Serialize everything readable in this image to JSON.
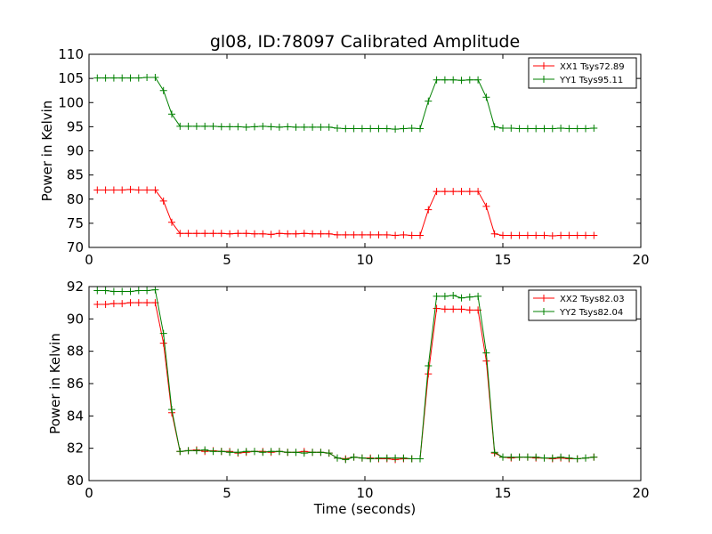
{
  "figure": {
    "title": "gl08, ID:78097 Calibrated Amplitude"
  },
  "colors": {
    "red": "#ff0000",
    "green": "#008000",
    "axes": "#000000",
    "background": "#ffffff"
  },
  "chart_data": [
    {
      "type": "line",
      "title": "gl08, ID:78097 Calibrated Amplitude",
      "xlabel": "",
      "ylabel": "Power in Kelvin",
      "xlim": [
        0,
        20
      ],
      "ylim": [
        70,
        110
      ],
      "xticks": [
        0,
        5,
        10,
        15,
        20
      ],
      "yticks": [
        70,
        75,
        80,
        85,
        90,
        95,
        100,
        105,
        110
      ],
      "grid": false,
      "legend_position": "top-right",
      "marker": "plus",
      "x": [
        0.3,
        0.6,
        0.9,
        1.2,
        1.5,
        1.8,
        2.1,
        2.4,
        2.7,
        3.0,
        3.3,
        3.6,
        3.9,
        4.2,
        4.5,
        4.8,
        5.1,
        5.4,
        5.7,
        6.0,
        6.3,
        6.6,
        6.9,
        7.2,
        7.5,
        7.8,
        8.1,
        8.4,
        8.7,
        9.0,
        9.3,
        9.6,
        9.9,
        10.2,
        10.5,
        10.8,
        11.1,
        11.4,
        11.7,
        12.0,
        12.3,
        12.6,
        12.9,
        13.2,
        13.5,
        13.8,
        14.1,
        14.4,
        14.7,
        15.0,
        15.3,
        15.6,
        15.9,
        16.2,
        16.5,
        16.8,
        17.1,
        17.4,
        17.7,
        18.0,
        18.3
      ],
      "series": [
        {
          "name": "XX1 Tsys72.89",
          "color": "#ff0000",
          "values": [
            81.9,
            81.9,
            81.9,
            81.9,
            82.0,
            81.9,
            81.9,
            81.9,
            79.6,
            75.2,
            72.9,
            72.9,
            72.9,
            72.9,
            72.9,
            72.9,
            72.8,
            72.9,
            72.9,
            72.8,
            72.8,
            72.7,
            72.9,
            72.8,
            72.8,
            72.9,
            72.8,
            72.8,
            72.8,
            72.6,
            72.6,
            72.6,
            72.6,
            72.6,
            72.6,
            72.6,
            72.5,
            72.6,
            72.5,
            72.5,
            77.8,
            81.6,
            81.6,
            81.6,
            81.6,
            81.6,
            81.6,
            78.5,
            72.8,
            72.5,
            72.5,
            72.5,
            72.5,
            72.5,
            72.5,
            72.4,
            72.5,
            72.5,
            72.5,
            72.5,
            72.5
          ]
        },
        {
          "name": "YY1 Tsys95.11",
          "color": "#008000",
          "values": [
            105.1,
            105.1,
            105.1,
            105.1,
            105.1,
            105.1,
            105.2,
            105.2,
            102.5,
            97.6,
            95.1,
            95.1,
            95.1,
            95.1,
            95.1,
            95.0,
            95.0,
            95.0,
            94.9,
            95.0,
            95.1,
            95.0,
            94.9,
            95.0,
            94.9,
            94.9,
            94.9,
            94.9,
            94.9,
            94.7,
            94.6,
            94.6,
            94.6,
            94.6,
            94.6,
            94.6,
            94.5,
            94.6,
            94.7,
            94.6,
            100.3,
            104.7,
            104.7,
            104.7,
            104.6,
            104.7,
            104.7,
            101.1,
            95.0,
            94.7,
            94.7,
            94.6,
            94.6,
            94.6,
            94.6,
            94.6,
            94.7,
            94.6,
            94.6,
            94.6,
            94.7
          ]
        }
      ]
    },
    {
      "type": "line",
      "title": "",
      "xlabel": "Time (seconds)",
      "ylabel": "Power in Kelvin",
      "xlim": [
        0,
        20
      ],
      "ylim": [
        80,
        92
      ],
      "xticks": [
        0,
        5,
        10,
        15,
        20
      ],
      "yticks": [
        80,
        82,
        84,
        86,
        88,
        90,
        92
      ],
      "grid": false,
      "legend_position": "top-right",
      "marker": "plus",
      "x": [
        0.3,
        0.6,
        0.9,
        1.2,
        1.5,
        1.8,
        2.1,
        2.4,
        2.7,
        3.0,
        3.3,
        3.6,
        3.9,
        4.2,
        4.5,
        4.8,
        5.1,
        5.4,
        5.7,
        6.0,
        6.3,
        6.6,
        6.9,
        7.2,
        7.5,
        7.8,
        8.1,
        8.4,
        8.7,
        9.0,
        9.3,
        9.6,
        9.9,
        10.2,
        10.5,
        10.8,
        11.1,
        11.4,
        11.7,
        12.0,
        12.3,
        12.6,
        12.9,
        13.2,
        13.5,
        13.8,
        14.1,
        14.4,
        14.7,
        15.0,
        15.3,
        15.6,
        15.9,
        16.2,
        16.5,
        16.8,
        17.1,
        17.4,
        17.7,
        18.0,
        18.3
      ],
      "series": [
        {
          "name": "XX2 Tsys82.03",
          "color": "#ff0000",
          "values": [
            90.9,
            90.9,
            90.95,
            90.95,
            91.0,
            91.0,
            91.0,
            91.0,
            88.5,
            84.2,
            81.8,
            81.85,
            81.9,
            81.8,
            81.85,
            81.8,
            81.8,
            81.7,
            81.75,
            81.8,
            81.8,
            81.75,
            81.8,
            81.75,
            81.75,
            81.8,
            81.75,
            81.75,
            81.7,
            81.4,
            81.35,
            81.45,
            81.4,
            81.4,
            81.35,
            81.35,
            81.3,
            81.35,
            81.35,
            81.35,
            86.6,
            90.65,
            90.6,
            90.6,
            90.6,
            90.55,
            90.55,
            87.4,
            81.7,
            81.45,
            81.4,
            81.45,
            81.45,
            81.4,
            81.4,
            81.35,
            81.4,
            81.35,
            81.35,
            81.4,
            81.45
          ]
        },
        {
          "name": "YY2 Tsys82.04",
          "color": "#008000",
          "values": [
            91.75,
            91.75,
            91.7,
            91.7,
            91.7,
            91.75,
            91.75,
            91.8,
            89.1,
            84.4,
            81.8,
            81.85,
            81.85,
            81.9,
            81.8,
            81.8,
            81.75,
            81.75,
            81.8,
            81.8,
            81.75,
            81.8,
            81.8,
            81.75,
            81.75,
            81.7,
            81.75,
            81.75,
            81.7,
            81.4,
            81.3,
            81.45,
            81.4,
            81.35,
            81.4,
            81.4,
            81.4,
            81.4,
            81.35,
            81.35,
            87.1,
            91.4,
            91.4,
            91.45,
            91.3,
            91.35,
            91.4,
            87.9,
            81.75,
            81.45,
            81.45,
            81.45,
            81.45,
            81.45,
            81.4,
            81.4,
            81.45,
            81.4,
            81.35,
            81.4,
            81.45
          ]
        }
      ]
    }
  ]
}
